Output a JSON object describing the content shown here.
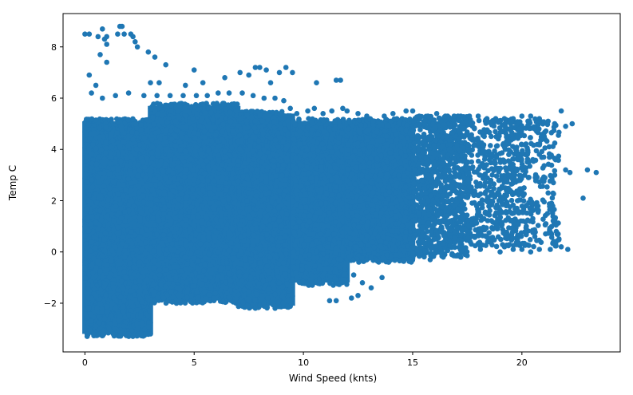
{
  "chart_data": {
    "type": "scatter",
    "xlabel": "Wind Speed (knts)",
    "ylabel": "Temp C",
    "xlim": [
      -1.0,
      24.5
    ],
    "ylim": [
      -3.9,
      9.3
    ],
    "x_ticks": [
      0,
      5,
      10,
      15,
      20
    ],
    "x_tick_labels": [
      "0",
      "5",
      "10",
      "15",
      "20"
    ],
    "y_ticks": [
      -2,
      0,
      2,
      4,
      6,
      8
    ],
    "y_tick_labels": [
      "−2",
      "0",
      "2",
      "4",
      "6",
      "8"
    ],
    "grid": false,
    "legend": "none",
    "marker_color": "#1f77b4",
    "points": [
      {
        "x": 0.0,
        "y": 8.5
      },
      {
        "x": 0.2,
        "y": 8.5
      },
      {
        "x": 0.6,
        "y": 8.4
      },
      {
        "x": 0.7,
        "y": 7.7
      },
      {
        "x": 0.8,
        "y": 8.7
      },
      {
        "x": 0.9,
        "y": 8.3
      },
      {
        "x": 1.0,
        "y": 8.4
      },
      {
        "x": 1.0,
        "y": 8.1
      },
      {
        "x": 1.0,
        "y": 7.4
      },
      {
        "x": 1.5,
        "y": 8.5
      },
      {
        "x": 1.6,
        "y": 8.8
      },
      {
        "x": 1.7,
        "y": 8.8
      },
      {
        "x": 1.8,
        "y": 8.5
      },
      {
        "x": 2.1,
        "y": 8.5
      },
      {
        "x": 2.2,
        "y": 8.4
      },
      {
        "x": 2.3,
        "y": 8.2
      },
      {
        "x": 2.4,
        "y": 8.0
      },
      {
        "x": 2.9,
        "y": 7.8
      },
      {
        "x": 3.2,
        "y": 7.6
      },
      {
        "x": 3.7,
        "y": 7.3
      },
      {
        "x": 5.0,
        "y": 7.1
      },
      {
        "x": 6.4,
        "y": 6.8
      },
      {
        "x": 7.1,
        "y": 7.0
      },
      {
        "x": 7.5,
        "y": 6.9
      },
      {
        "x": 7.8,
        "y": 7.2
      },
      {
        "x": 8.0,
        "y": 7.2
      },
      {
        "x": 8.3,
        "y": 7.1
      },
      {
        "x": 8.9,
        "y": 7.0
      },
      {
        "x": 9.2,
        "y": 7.2
      },
      {
        "x": 9.5,
        "y": 7.0
      },
      {
        "x": 0.2,
        "y": 6.9
      },
      {
        "x": 0.5,
        "y": 6.5
      },
      {
        "x": 3.0,
        "y": 6.6
      },
      {
        "x": 3.4,
        "y": 6.6
      },
      {
        "x": 4.6,
        "y": 6.5
      },
      {
        "x": 5.4,
        "y": 6.6
      },
      {
        "x": 8.5,
        "y": 6.6
      },
      {
        "x": 10.6,
        "y": 6.6
      },
      {
        "x": 11.5,
        "y": 6.7
      },
      {
        "x": 11.7,
        "y": 6.7
      },
      {
        "x": 0.1,
        "y": -3.2
      },
      {
        "x": 0.4,
        "y": -3.2
      },
      {
        "x": 0.8,
        "y": -3.2
      },
      {
        "x": 1.3,
        "y": -3.2
      },
      {
        "x": 2.0,
        "y": -3.2
      },
      {
        "x": 2.8,
        "y": -3.2
      },
      {
        "x": 3.0,
        "y": -3.2
      },
      {
        "x": 0.3,
        "y": -2.7
      },
      {
        "x": 0.9,
        "y": -2.6
      },
      {
        "x": 1.6,
        "y": -2.5
      },
      {
        "x": 2.2,
        "y": -2.5
      },
      {
        "x": 0.5,
        "y": -2.9
      },
      {
        "x": 1.1,
        "y": -3.0
      },
      {
        "x": 12.5,
        "y": -1.7
      },
      {
        "x": 13.1,
        "y": -1.4
      },
      {
        "x": 12.2,
        "y": -1.8
      },
      {
        "x": 11.2,
        "y": -1.9
      },
      {
        "x": 11.5,
        "y": -1.9
      },
      {
        "x": 13.6,
        "y": -1.0
      },
      {
        "x": 12.7,
        "y": -1.2
      },
      {
        "x": 12.3,
        "y": -0.9
      },
      {
        "x": 14.6,
        "y": -0.3
      },
      {
        "x": 13.9,
        "y": -0.4
      },
      {
        "x": 15.8,
        "y": -0.3
      },
      {
        "x": 16.4,
        "y": -0.2
      },
      {
        "x": 17.2,
        "y": -0.2
      },
      {
        "x": 17.4,
        "y": -0.1
      },
      {
        "x": 18.1,
        "y": 0.1
      },
      {
        "x": 19.0,
        "y": 0.0
      },
      {
        "x": 19.6,
        "y": 0.1
      },
      {
        "x": 20.0,
        "y": 0.1
      },
      {
        "x": 20.4,
        "y": 0.0
      },
      {
        "x": 20.8,
        "y": 0.1
      },
      {
        "x": 21.3,
        "y": 0.1
      },
      {
        "x": 21.8,
        "y": 0.2
      },
      {
        "x": 22.1,
        "y": 0.1
      },
      {
        "x": 21.1,
        "y": 1.1
      },
      {
        "x": 20.2,
        "y": 1.0
      },
      {
        "x": 19.8,
        "y": 1.6
      },
      {
        "x": 20.5,
        "y": 1.3
      },
      {
        "x": 21.2,
        "y": 2.3
      },
      {
        "x": 20.1,
        "y": 2.5
      },
      {
        "x": 19.3,
        "y": 2.2
      },
      {
        "x": 20.3,
        "y": 2.9
      },
      {
        "x": 21.0,
        "y": 2.9
      },
      {
        "x": 21.5,
        "y": 3.0
      },
      {
        "x": 22.0,
        "y": 3.2
      },
      {
        "x": 22.2,
        "y": 3.1
      },
      {
        "x": 21.0,
        "y": 3.7
      },
      {
        "x": 20.5,
        "y": 3.6
      },
      {
        "x": 20.0,
        "y": 3.8
      },
      {
        "x": 19.4,
        "y": 3.8
      },
      {
        "x": 19.2,
        "y": 4.1
      },
      {
        "x": 22.8,
        "y": 2.1
      },
      {
        "x": 23.0,
        "y": 3.2
      },
      {
        "x": 23.4,
        "y": 3.1
      },
      {
        "x": 22.3,
        "y": 5.0
      },
      {
        "x": 22.0,
        "y": 4.9
      },
      {
        "x": 21.8,
        "y": 5.5
      },
      {
        "x": 21.5,
        "y": 5.0
      },
      {
        "x": 21.2,
        "y": 5.1
      },
      {
        "x": 20.8,
        "y": 5.2
      },
      {
        "x": 20.4,
        "y": 5.3
      },
      {
        "x": 20.0,
        "y": 5.3
      },
      {
        "x": 19.6,
        "y": 5.2
      },
      {
        "x": 19.2,
        "y": 5.2
      },
      {
        "x": 18.8,
        "y": 5.2
      },
      {
        "x": 18.4,
        "y": 5.2
      },
      {
        "x": 18.0,
        "y": 5.3
      },
      {
        "x": 17.6,
        "y": 5.3
      },
      {
        "x": 17.2,
        "y": 5.3
      },
      {
        "x": 16.9,
        "y": 5.3
      },
      {
        "x": 16.5,
        "y": 5.3
      },
      {
        "x": 16.1,
        "y": 5.4
      },
      {
        "x": 15.7,
        "y": 5.3
      },
      {
        "x": 15.3,
        "y": 5.3
      },
      {
        "x": 15.0,
        "y": 5.5
      },
      {
        "x": 14.7,
        "y": 5.5
      },
      {
        "x": 14.1,
        "y": 5.4
      },
      {
        "x": 13.7,
        "y": 5.3
      },
      {
        "x": 13.2,
        "y": 5.1
      },
      {
        "x": 12.9,
        "y": 5.3
      },
      {
        "x": 12.5,
        "y": 5.4
      },
      {
        "x": 12.0,
        "y": 5.5
      },
      {
        "x": 11.8,
        "y": 5.6
      },
      {
        "x": 11.3,
        "y": 5.5
      },
      {
        "x": 10.9,
        "y": 5.4
      },
      {
        "x": 10.5,
        "y": 5.6
      },
      {
        "x": 10.2,
        "y": 5.5
      },
      {
        "x": 9.7,
        "y": 5.4
      },
      {
        "x": 9.4,
        "y": 5.6
      },
      {
        "x": 9.1,
        "y": 5.9
      },
      {
        "x": 8.7,
        "y": 6.0
      },
      {
        "x": 8.2,
        "y": 6.0
      },
      {
        "x": 7.7,
        "y": 6.1
      },
      {
        "x": 7.2,
        "y": 6.2
      },
      {
        "x": 6.6,
        "y": 6.2
      },
      {
        "x": 6.1,
        "y": 6.2
      },
      {
        "x": 5.6,
        "y": 6.1
      },
      {
        "x": 5.1,
        "y": 6.1
      },
      {
        "x": 4.5,
        "y": 6.1
      },
      {
        "x": 3.9,
        "y": 6.1
      },
      {
        "x": 3.3,
        "y": 6.1
      },
      {
        "x": 2.7,
        "y": 6.1
      },
      {
        "x": 2.0,
        "y": 6.2
      },
      {
        "x": 1.4,
        "y": 6.1
      },
      {
        "x": 0.8,
        "y": 6.0
      },
      {
        "x": 0.3,
        "y": 6.2
      }
    ],
    "density_regions": [
      {
        "x_range": [
          0.0,
          3.0
        ],
        "y_range": [
          -3.3,
          5.2
        ],
        "density": 1.0
      },
      {
        "x_range": [
          3.0,
          7.0
        ],
        "y_range": [
          -2.0,
          5.8
        ],
        "density": 1.0
      },
      {
        "x_range": [
          7.0,
          9.5
        ],
        "y_range": [
          -2.2,
          5.5
        ],
        "density": 1.0
      },
      {
        "x_range": [
          9.5,
          12.0
        ],
        "y_range": [
          -1.3,
          5.2
        ],
        "density": 0.95
      },
      {
        "x_range": [
          12.0,
          15.0
        ],
        "y_range": [
          -0.4,
          5.2
        ],
        "density": 0.9
      },
      {
        "x_range": [
          15.0,
          17.5
        ],
        "y_range": [
          -0.2,
          5.3
        ],
        "density": 0.8
      },
      {
        "x_range": [
          17.5,
          20.0
        ],
        "y_range": [
          0.2,
          5.2
        ],
        "density": 0.45
      },
      {
        "x_range": [
          20.0,
          21.7
        ],
        "y_range": [
          0.2,
          5.2
        ],
        "density": 0.25
      }
    ]
  }
}
